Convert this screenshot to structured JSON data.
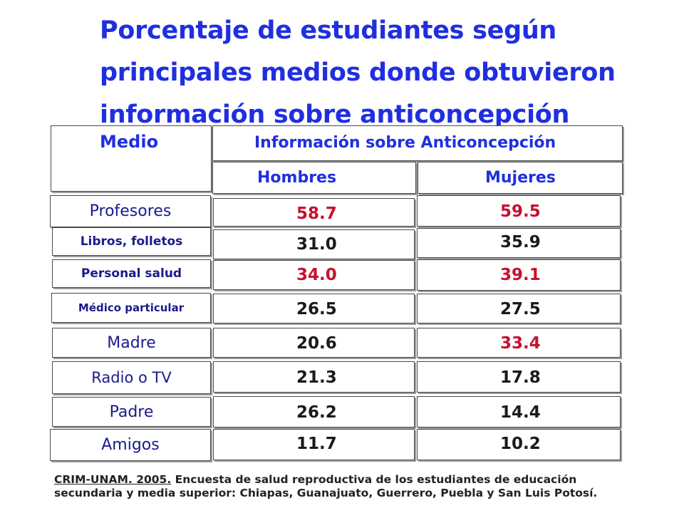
{
  "title_lines": [
    "Porcentaje de estudiantes según",
    "principales medios donde obtuvieron",
    "información sobre anticoncepción"
  ],
  "table": {
    "col_medio": "Medio",
    "col_info": "Información sobre Anticoncepción",
    "col_hombres": "Hombres",
    "col_mujeres": "Mujeres",
    "rows": [
      {
        "medio": "Profesores",
        "hombres": "58.7",
        "mujeres": "59.5"
      },
      {
        "medio": "Libros, folletos",
        "hombres": "31.0",
        "mujeres": "35.9"
      },
      {
        "medio": "Personal salud",
        "hombres": "34.0",
        "mujeres": "39.1"
      },
      {
        "medio": "Médico particular",
        "hombres": "26.5",
        "mujeres": "27.5"
      },
      {
        "medio": "Madre",
        "hombres": "20.6",
        "mujeres": "33.4"
      },
      {
        "medio": "Radio o TV",
        "hombres": "21.3",
        "mujeres": "17.8"
      },
      {
        "medio": "Padre",
        "hombres": "26.2",
        "mujeres": "14.4"
      },
      {
        "medio": "Amigos",
        "hombres": "11.7",
        "mujeres": "10.2"
      }
    ]
  },
  "footer": {
    "source": "CRIM-UNAM. 2005.",
    "text": " Encuesta de salud reproductiva de los estudiantes de educación secundaria y media superior: Chiapas, Guanajuato, Guerrero, Puebla y San Luis Potosí."
  },
  "colors": {
    "title": "#1f2fe0",
    "label": "#1a1a8c",
    "highlight": "#c8102e",
    "value_dark": "#1a1a1a"
  }
}
